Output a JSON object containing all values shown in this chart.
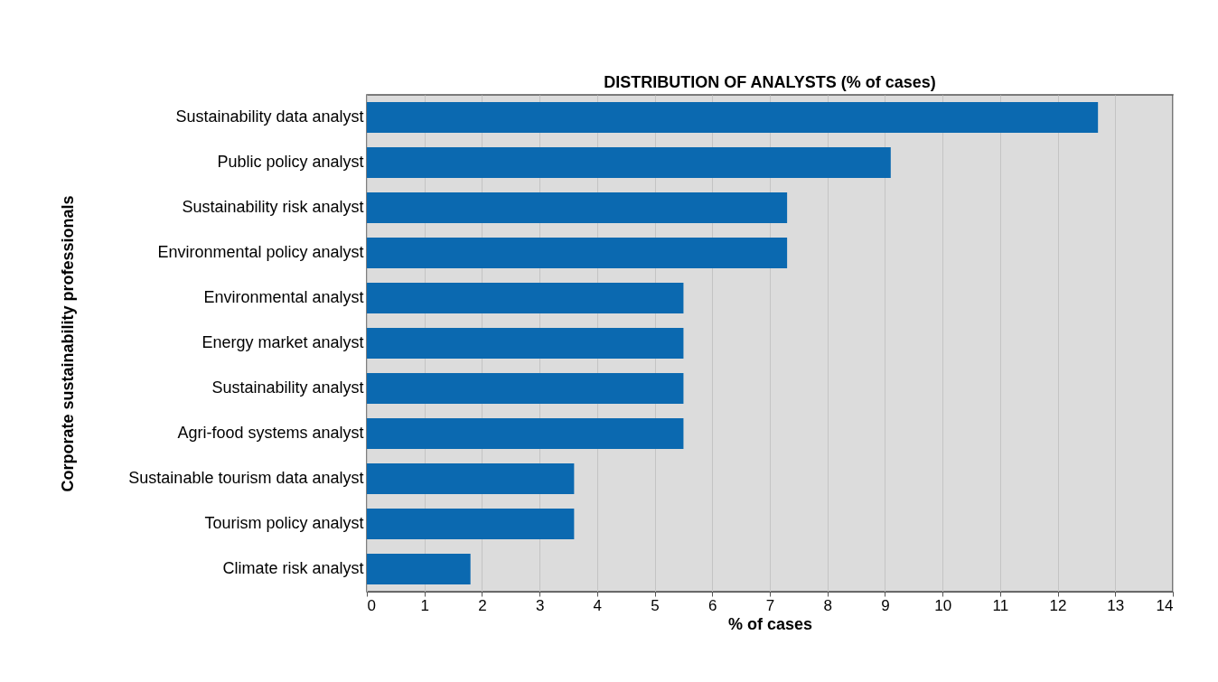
{
  "chart_data": {
    "type": "bar",
    "orientation": "horizontal",
    "title": "DISTRIBUTION OF ANALYSTS (% of cases)",
    "xlabel": "% of cases",
    "ylabel": "Corporate sustainability professionals",
    "categories": [
      "Sustainability data analyst",
      "Public policy analyst",
      "Sustainability risk analyst",
      "Environmental policy analyst",
      "Environmental analyst",
      "Energy market analyst",
      "Sustainability analyst",
      "Agri-food systems analyst",
      "Sustainable tourism data analyst",
      "Tourism policy analyst",
      "Climate risk analyst"
    ],
    "values": [
      12.7,
      9.1,
      7.3,
      7.3,
      5.5,
      5.5,
      5.5,
      5.5,
      3.6,
      3.6,
      1.8
    ],
    "color": "#0b69b0",
    "xlim": [
      0,
      14
    ],
    "xticks": [
      0,
      1,
      2,
      3,
      4,
      5,
      6,
      7,
      8,
      9,
      10,
      11,
      12,
      13,
      14
    ],
    "grid": "x"
  }
}
